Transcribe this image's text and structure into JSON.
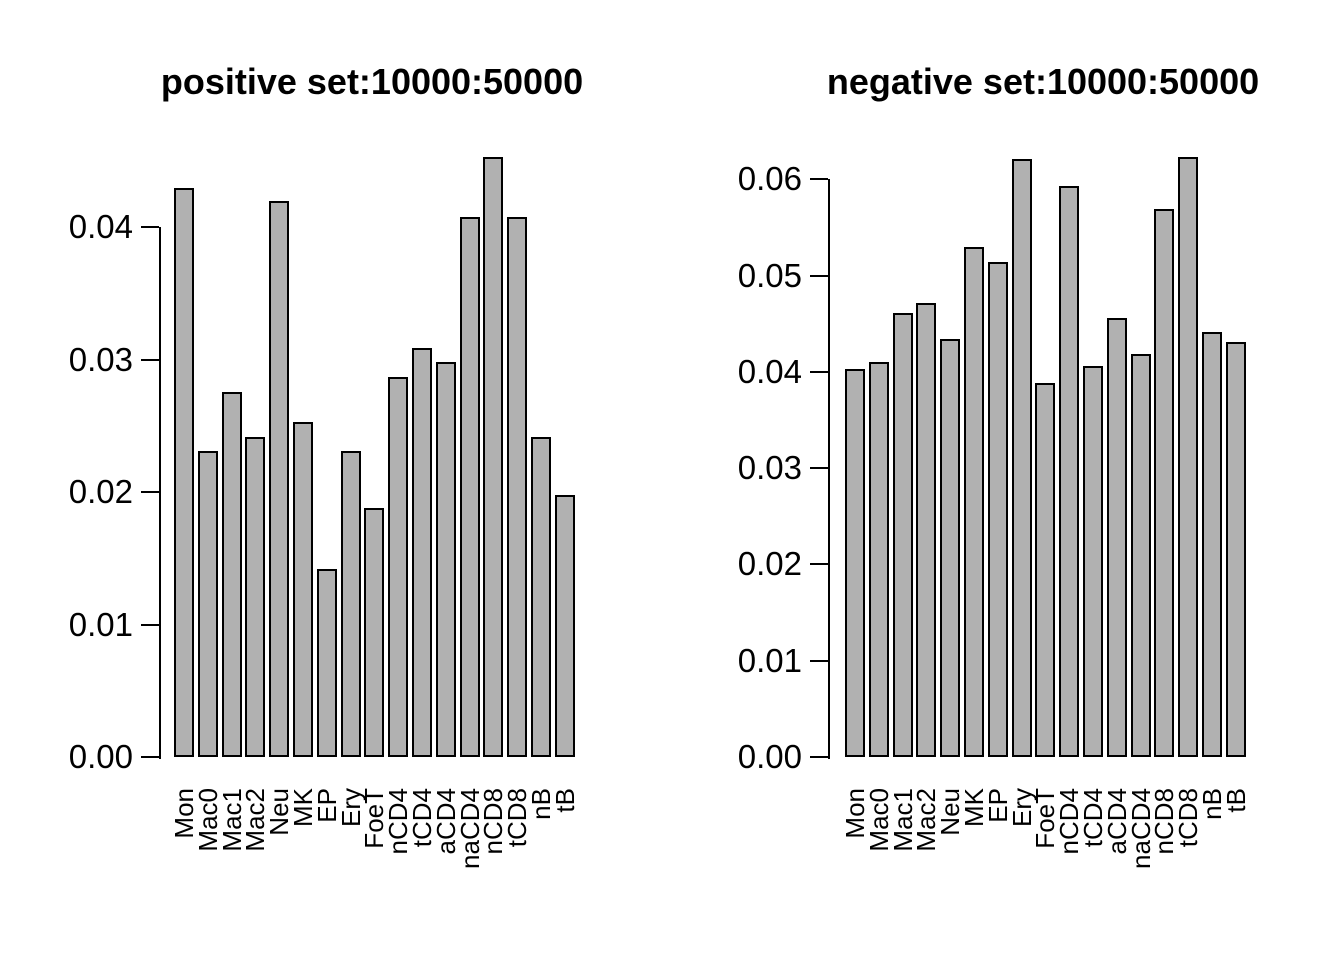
{
  "figure": {
    "background": "#ffffff",
    "bar_fill": "#b1b1b1",
    "bar_border": "#000000",
    "text_color": "#000000"
  },
  "chart_data": [
    {
      "type": "bar",
      "title": "positive set:10000:50000",
      "categories": [
        "Mon",
        "Mac0",
        "Mac1",
        "Mac2",
        "Neu",
        "MK",
        "EP",
        "Ery",
        "FoeT",
        "nCD4",
        "tCD4",
        "aCD4",
        "naCD4",
        "nCD8",
        "tCD8",
        "nB",
        "tB"
      ],
      "values": [
        0.043,
        0.0231,
        0.0276,
        0.0242,
        0.042,
        0.0253,
        0.0142,
        0.0231,
        0.0188,
        0.0287,
        0.0309,
        0.0298,
        0.0408,
        0.0453,
        0.0408,
        0.0242,
        0.0198
      ],
      "xlabel": "",
      "ylabel": "",
      "ylim": [
        0,
        0.0466
      ],
      "ytick_values": [
        0,
        0.01,
        0.02,
        0.03,
        0.04
      ],
      "ytick_labels": [
        "0.00",
        "0.01",
        "0.02",
        "0.03",
        "0.04"
      ],
      "grid": false,
      "legend": "none",
      "x_labels_rotated": true
    },
    {
      "type": "bar",
      "title": "negative set:10000:50000",
      "categories": [
        "Mon",
        "Mac0",
        "Mac1",
        "Mac2",
        "Neu",
        "MK",
        "EP",
        "Ery",
        "FoeT",
        "nCD4",
        "tCD4",
        "aCD4",
        "naCD4",
        "nCD8",
        "tCD8",
        "nB",
        "tB"
      ],
      "values": [
        0.0403,
        0.041,
        0.0461,
        0.0472,
        0.0434,
        0.053,
        0.0514,
        0.0621,
        0.0389,
        0.0593,
        0.0406,
        0.0456,
        0.0419,
        0.0569,
        0.0623,
        0.0442,
        0.0431
      ],
      "xlabel": "",
      "ylabel": "",
      "ylim": [
        0,
        0.0641
      ],
      "ytick_values": [
        0,
        0.01,
        0.02,
        0.03,
        0.04,
        0.05,
        0.06
      ],
      "ytick_labels": [
        "0.00",
        "0.01",
        "0.02",
        "0.03",
        "0.04",
        "0.05",
        "0.06"
      ],
      "grid": false,
      "legend": "none",
      "x_labels_rotated": true
    }
  ]
}
